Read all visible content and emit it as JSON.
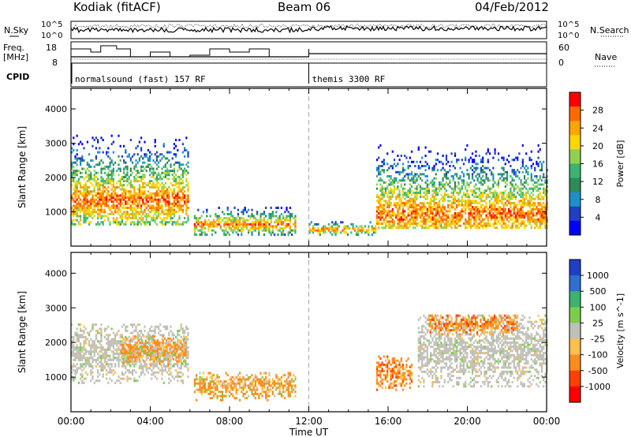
{
  "header": {
    "station": "Kodiak (fitACF)",
    "beam": "Beam 06",
    "date": "04/Feb/2012"
  },
  "strip": {
    "nsky_label": "N.Sky",
    "nsearch_label": "N.Search",
    "nsky_ticks": [
      "10^5",
      "10^0"
    ],
    "nsearch_ticks": [
      "10^5",
      "10^0"
    ],
    "freq_label_1": "Freq.",
    "freq_label_2": "[MHz]",
    "freq_ticks": [
      "18",
      "8"
    ],
    "nave_label": "Nave",
    "nave_ticks": [
      "60",
      "0"
    ],
    "cpid_label": "CPID",
    "modes": [
      {
        "name": "normalsound (fast) 157 RF",
        "start_hour": 0
      },
      {
        "name": "themis 3300 RF",
        "start_hour": 12
      }
    ]
  },
  "chart_data": [
    {
      "type": "heatmap",
      "panel": "power",
      "xlabel": "",
      "ylabel": "Slant Range [km]",
      "xlim": [
        0,
        24
      ],
      "ylim": [
        0,
        4600
      ],
      "yticks": [
        1000,
        2000,
        3000,
        4000
      ],
      "colorbar_label": "Power [dB]",
      "colorbar_ticks": [
        "28",
        "24",
        "20",
        "16",
        "12",
        "8",
        "4"
      ],
      "colorbar_colors": [
        "#ff0000",
        "#ff6a00",
        "#ffa500",
        "#ffd700",
        "#8fd14f",
        "#3cb371",
        "#2e8b57",
        "#1e90c8",
        "#1f3fc8",
        "#0000ff"
      ],
      "echo_regions": [
        {
          "t0": 0.0,
          "t1": 5.9,
          "r0": 600,
          "r1": 3500,
          "core_r": 1300
        },
        {
          "t0": 6.2,
          "t1": 11.3,
          "r0": 300,
          "r1": 1100,
          "core_r": 600
        },
        {
          "t0": 12.0,
          "t1": 15.4,
          "r0": 300,
          "r1": 700,
          "core_r": 450
        },
        {
          "t0": 15.4,
          "t1": 24.0,
          "r0": 500,
          "r1": 3500,
          "core_r": 900
        }
      ]
    },
    {
      "type": "heatmap",
      "panel": "velocity",
      "xlabel": "Time UT",
      "ylabel": "Slant Range [km]",
      "xlim": [
        0,
        24
      ],
      "ylim": [
        0,
        4600
      ],
      "xticks": [
        "00:00",
        "04:00",
        "08:00",
        "12:00",
        "16:00",
        "20:00",
        "00:00"
      ],
      "yticks": [
        1000,
        2000,
        3000,
        4000
      ],
      "colorbar_label": "Velocity [m s^-1]",
      "colorbar_ticks": [
        "1000",
        "500",
        "100",
        "25",
        "-25",
        "-100",
        "-500",
        "-1000"
      ],
      "colorbar_colors": [
        "#1f3fc8",
        "#2e6fcf",
        "#3cb371",
        "#7ccd4a",
        "#c0c0b8",
        "#ffc04c",
        "#ff8c1a",
        "#ff4000",
        "#ff0000"
      ],
      "ground_scatter_color": "#c0c0b8",
      "echo_regions": [
        {
          "t0": 0.0,
          "t1": 5.9,
          "r0": 800,
          "r1": 2500,
          "dominant": "ground_scatter"
        },
        {
          "t0": 2.5,
          "t1": 5.8,
          "r0": 1300,
          "r1": 2200,
          "dominant": "-100"
        },
        {
          "t0": 6.2,
          "t1": 11.3,
          "r0": 300,
          "r1": 1100,
          "dominant": "-100"
        },
        {
          "t0": 15.4,
          "t1": 17.2,
          "r0": 600,
          "r1": 1600,
          "dominant": "-500"
        },
        {
          "t0": 17.5,
          "t1": 24.0,
          "r0": 700,
          "r1": 2800,
          "dominant": "ground_scatter"
        },
        {
          "t0": 18.0,
          "t1": 22.5,
          "r0": 2200,
          "r1": 2800,
          "dominant": "-500"
        }
      ]
    }
  ]
}
